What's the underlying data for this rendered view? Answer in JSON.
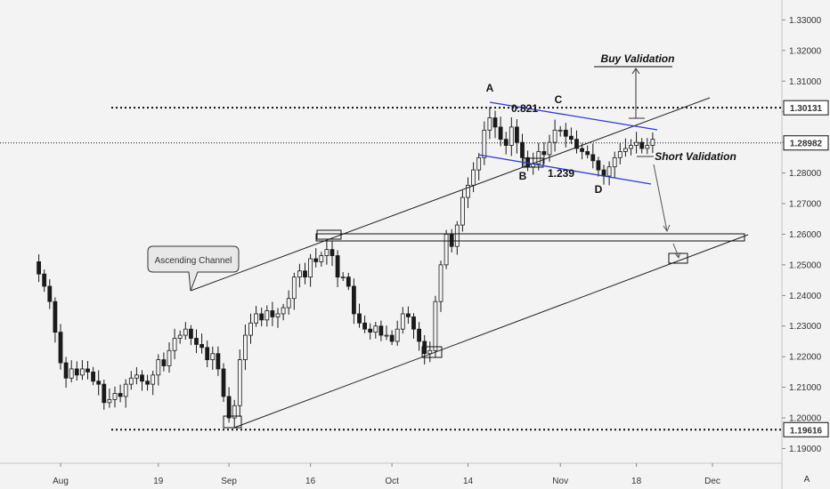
{
  "chart_data": {
    "type": "candlestick",
    "ylim": [
      1.1852,
      1.3365
    ],
    "y_ticks": [
      "1.33000",
      "1.32000",
      "1.31000",
      "1.30000",
      "1.29000",
      "1.28000",
      "1.27000",
      "1.26000",
      "1.25000",
      "1.24000",
      "1.23000",
      "1.22000",
      "1.21000",
      "1.20000",
      "1.19000"
    ],
    "y_tick_values": [
      1.33,
      1.32,
      1.31,
      1.3,
      1.29,
      1.28,
      1.27,
      1.26,
      1.25,
      1.24,
      1.23,
      1.22,
      1.21,
      1.2,
      1.19
    ],
    "x_tick_labels": [
      "Aug",
      "19",
      "Sep",
      "16",
      "Oct",
      "14",
      "Nov",
      "18",
      "Dec"
    ],
    "x_tick_days": [
      0,
      18,
      31,
      46,
      61,
      75,
      92,
      106,
      120
    ],
    "price_levels": [
      {
        "label": "1.30131",
        "value": 1.30131,
        "style": "dotted"
      },
      {
        "label": "1.28982",
        "value": 1.28982,
        "style": "dotted-thin"
      },
      {
        "label": "1.19616",
        "value": 1.19616,
        "style": "dotted"
      }
    ],
    "annotations": {
      "A": "A",
      "B": "B",
      "C": "C",
      "D": "D",
      "fib_upper": "0.821",
      "fib_lower": "1.239",
      "buy": "Buy Validation",
      "short": "Short Validation",
      "channel": "Ascending Channel"
    },
    "footer_marker": "A",
    "colors": {
      "candle": "#1a1a1a",
      "wedge": "#2b3bd6",
      "line": "#222222",
      "background": "#f3f3f3"
    },
    "series": [
      {
        "day": -5,
        "price": 1.251
      },
      {
        "day": -4,
        "price": 1.247
      },
      {
        "day": -3,
        "price": 1.243
      },
      {
        "day": -2,
        "price": 1.238
      },
      {
        "day": -1,
        "price": 1.228
      },
      {
        "day": 0,
        "price": 1.218
      },
      {
        "day": 1,
        "price": 1.213
      },
      {
        "day": 2,
        "price": 1.216
      },
      {
        "day": 3,
        "price": 1.214
      },
      {
        "day": 4,
        "price": 1.216
      },
      {
        "day": 5,
        "price": 1.215
      },
      {
        "day": 6,
        "price": 1.212
      },
      {
        "day": 7,
        "price": 1.211
      },
      {
        "day": 8,
        "price": 1.205
      },
      {
        "day": 9,
        "price": 1.206
      },
      {
        "day": 10,
        "price": 1.208
      },
      {
        "day": 11,
        "price": 1.207
      },
      {
        "day": 12,
        "price": 1.211
      },
      {
        "day": 13,
        "price": 1.213
      },
      {
        "day": 14,
        "price": 1.214
      },
      {
        "day": 15,
        "price": 1.212
      },
      {
        "day": 16,
        "price": 1.211
      },
      {
        "day": 17,
        "price": 1.214
      },
      {
        "day": 18,
        "price": 1.219
      },
      {
        "day": 19,
        "price": 1.217
      },
      {
        "day": 20,
        "price": 1.222
      },
      {
        "day": 21,
        "price": 1.226
      },
      {
        "day": 22,
        "price": 1.227
      },
      {
        "day": 23,
        "price": 1.229
      },
      {
        "day": 24,
        "price": 1.226
      },
      {
        "day": 25,
        "price": 1.224
      },
      {
        "day": 26,
        "price": 1.223
      },
      {
        "day": 27,
        "price": 1.219
      },
      {
        "day": 28,
        "price": 1.221
      },
      {
        "day": 29,
        "price": 1.216
      },
      {
        "day": 30,
        "price": 1.207
      },
      {
        "day": 31,
        "price": 1.2
      },
      {
        "day": 32,
        "price": 1.204
      },
      {
        "day": 33,
        "price": 1.219
      },
      {
        "day": 34,
        "price": 1.227
      },
      {
        "day": 35,
        "price": 1.231
      },
      {
        "day": 36,
        "price": 1.234
      },
      {
        "day": 37,
        "price": 1.232
      },
      {
        "day": 38,
        "price": 1.235
      },
      {
        "day": 39,
        "price": 1.233
      },
      {
        "day": 40,
        "price": 1.234
      },
      {
        "day": 41,
        "price": 1.236
      },
      {
        "day": 42,
        "price": 1.239
      },
      {
        "day": 43,
        "price": 1.246
      },
      {
        "day": 44,
        "price": 1.248
      },
      {
        "day": 45,
        "price": 1.246
      },
      {
        "day": 46,
        "price": 1.252
      },
      {
        "day": 47,
        "price": 1.251
      },
      {
        "day": 48,
        "price": 1.253
      },
      {
        "day": 49,
        "price": 1.255
      },
      {
        "day": 50,
        "price": 1.253
      },
      {
        "day": 51,
        "price": 1.246
      },
      {
        "day": 52,
        "price": 1.246
      },
      {
        "day": 53,
        "price": 1.243
      },
      {
        "day": 54,
        "price": 1.234
      },
      {
        "day": 55,
        "price": 1.231
      },
      {
        "day": 56,
        "price": 1.229
      },
      {
        "day": 57,
        "price": 1.228
      },
      {
        "day": 58,
        "price": 1.23
      },
      {
        "day": 59,
        "price": 1.227
      },
      {
        "day": 60,
        "price": 1.227
      },
      {
        "day": 61,
        "price": 1.225
      },
      {
        "day": 62,
        "price": 1.229
      },
      {
        "day": 63,
        "price": 1.234
      },
      {
        "day": 64,
        "price": 1.233
      },
      {
        "day": 65,
        "price": 1.229
      },
      {
        "day": 66,
        "price": 1.225
      },
      {
        "day": 67,
        "price": 1.221
      },
      {
        "day": 68,
        "price": 1.222
      },
      {
        "day": 69,
        "price": 1.238
      },
      {
        "day": 70,
        "price": 1.25
      },
      {
        "day": 71,
        "price": 1.26
      },
      {
        "day": 72,
        "price": 1.256
      },
      {
        "day": 73,
        "price": 1.263
      },
      {
        "day": 74,
        "price": 1.272
      },
      {
        "day": 75,
        "price": 1.276
      },
      {
        "day": 76,
        "price": 1.281
      },
      {
        "day": 77,
        "price": 1.285
      },
      {
        "day": 78,
        "price": 1.294
      },
      {
        "day": 79,
        "price": 1.298
      },
      {
        "day": 80,
        "price": 1.295
      },
      {
        "day": 81,
        "price": 1.291
      },
      {
        "day": 82,
        "price": 1.289
      },
      {
        "day": 83,
        "price": 1.295
      },
      {
        "day": 84,
        "price": 1.29
      },
      {
        "day": 85,
        "price": 1.285
      },
      {
        "day": 86,
        "price": 1.282
      },
      {
        "day": 87,
        "price": 1.283
      },
      {
        "day": 88,
        "price": 1.287
      },
      {
        "day": 89,
        "price": 1.286
      },
      {
        "day": 90,
        "price": 1.29
      },
      {
        "day": 91,
        "price": 1.294
      },
      {
        "day": 92,
        "price": 1.294
      },
      {
        "day": 93,
        "price": 1.292
      },
      {
        "day": 94,
        "price": 1.291
      },
      {
        "day": 95,
        "price": 1.288
      },
      {
        "day": 96,
        "price": 1.287
      },
      {
        "day": 97,
        "price": 1.286
      },
      {
        "day": 98,
        "price": 1.284
      },
      {
        "day": 99,
        "price": 1.281
      },
      {
        "day": 100,
        "price": 1.279
      },
      {
        "day": 101,
        "price": 1.282
      },
      {
        "day": 102,
        "price": 1.285
      },
      {
        "day": 103,
        "price": 1.287
      },
      {
        "day": 104,
        "price": 1.288
      },
      {
        "day": 105,
        "price": 1.289
      },
      {
        "day": 106,
        "price": 1.29
      },
      {
        "day": 107,
        "price": 1.288
      },
      {
        "day": 108,
        "price": 1.289
      },
      {
        "day": 109,
        "price": 1.291
      }
    ]
  }
}
